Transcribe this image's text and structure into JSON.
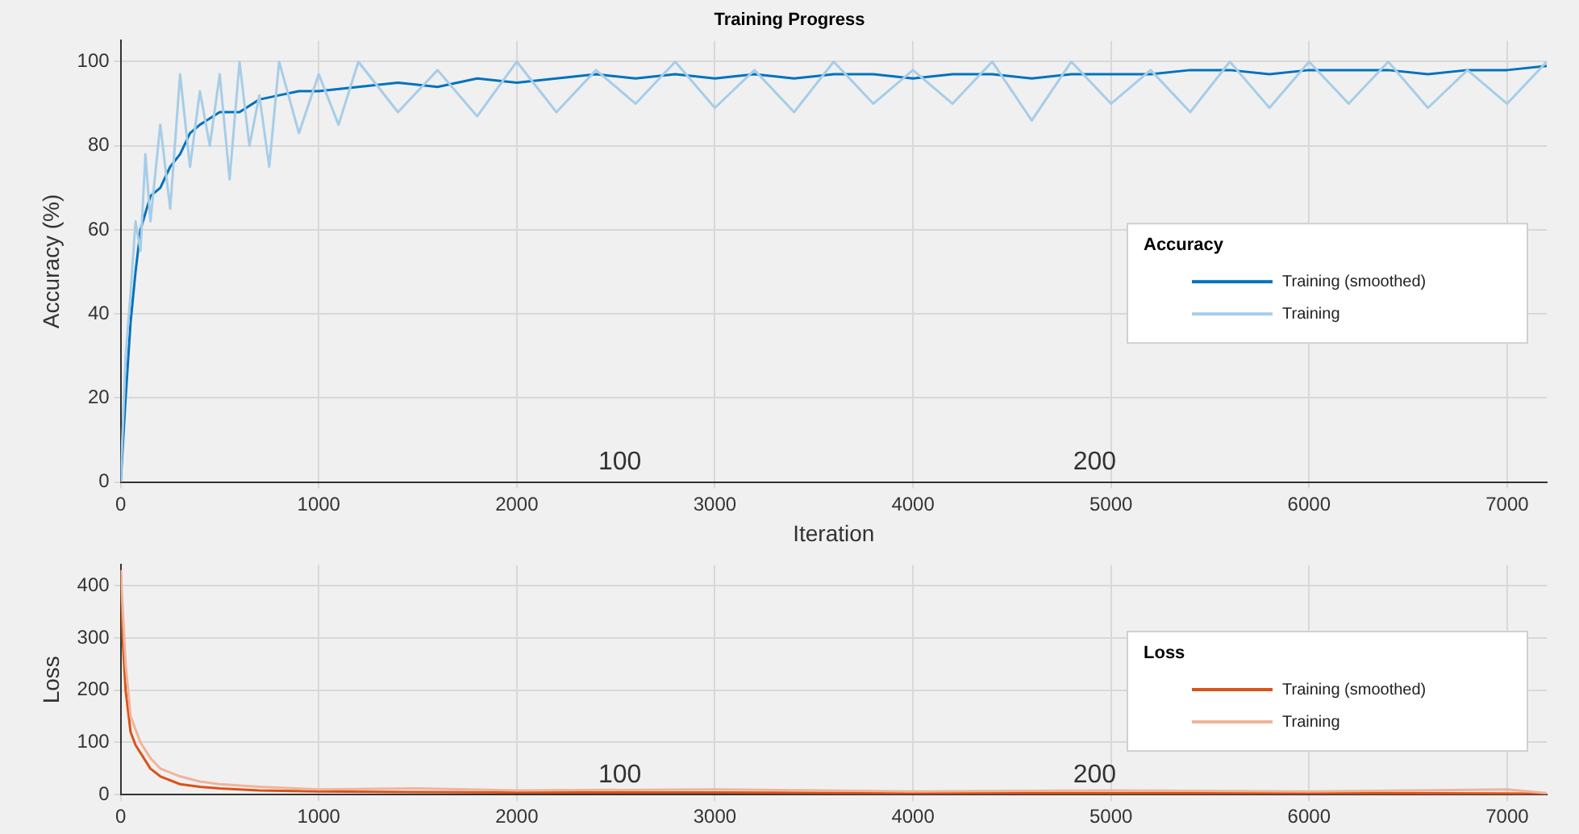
{
  "chart_data": [
    {
      "type": "line",
      "title": "Training Progress",
      "xlabel": "Iteration",
      "ylabel": "Accuracy (%)",
      "legend_title": "Accuracy",
      "legend": "right",
      "grid": true,
      "xlim": [
        0,
        7200
      ],
      "xticks": [
        0,
        1000,
        2000,
        3000,
        4000,
        5000,
        6000,
        7000
      ],
      "ylim": [
        0,
        105
      ],
      "yticks": [
        0,
        20,
        40,
        60,
        80,
        100
      ],
      "annotations": [
        "100",
        "200"
      ],
      "series": [
        {
          "name": "Training (smoothed)",
          "color": "#0072bd",
          "x": [
            0,
            25,
            50,
            75,
            100,
            150,
            200,
            250,
            300,
            350,
            400,
            500,
            600,
            700,
            800,
            900,
            1000,
            1200,
            1400,
            1600,
            1800,
            2000,
            2200,
            2400,
            2600,
            2800,
            3000,
            3200,
            3400,
            3600,
            3800,
            4000,
            4200,
            4400,
            4600,
            4800,
            5000,
            5200,
            5400,
            5600,
            5800,
            6000,
            6200,
            6400,
            6600,
            6800,
            7000,
            7200
          ],
          "values": [
            0,
            20,
            38,
            50,
            60,
            68,
            70,
            75,
            78,
            83,
            85,
            88,
            88,
            91,
            92,
            93,
            93,
            94,
            95,
            94,
            96,
            95,
            96,
            97,
            96,
            97,
            96,
            97,
            96,
            97,
            97,
            96,
            97,
            97,
            96,
            97,
            97,
            97,
            98,
            98,
            97,
            98,
            98,
            98,
            97,
            98,
            98,
            99
          ]
        },
        {
          "name": "Training",
          "color": "#a6cde8",
          "x": [
            0,
            25,
            50,
            75,
            100,
            125,
            150,
            200,
            250,
            300,
            350,
            400,
            450,
            500,
            550,
            600,
            650,
            700,
            750,
            800,
            900,
            1000,
            1100,
            1200,
            1400,
            1600,
            1800,
            2000,
            2200,
            2400,
            2600,
            2800,
            3000,
            3200,
            3400,
            3600,
            3800,
            4000,
            4200,
            4400,
            4600,
            4800,
            5000,
            5200,
            5400,
            5600,
            5800,
            6000,
            6200,
            6400,
            6600,
            6800,
            7000,
            7200
          ],
          "values": [
            0,
            30,
            45,
            62,
            55,
            78,
            62,
            85,
            65,
            97,
            75,
            93,
            80,
            97,
            72,
            100,
            80,
            92,
            75,
            100,
            83,
            97,
            85,
            100,
            88,
            98,
            87,
            100,
            88,
            98,
            90,
            100,
            89,
            98,
            88,
            100,
            90,
            98,
            90,
            100,
            86,
            100,
            90,
            98,
            88,
            100,
            89,
            100,
            90,
            100,
            89,
            98,
            90,
            100
          ]
        }
      ]
    },
    {
      "type": "line",
      "ylabel": "Loss",
      "legend_title": "Loss",
      "legend": "right",
      "grid": true,
      "xlim": [
        0,
        7200
      ],
      "xticks": [
        0,
        1000,
        2000,
        3000,
        4000,
        5000,
        6000,
        7000
      ],
      "ylim": [
        0,
        440
      ],
      "yticks": [
        0,
        100,
        200,
        300,
        400
      ],
      "annotations": [
        "100",
        "200"
      ],
      "series": [
        {
          "name": "Training (smoothed)",
          "color": "#d95319",
          "x": [
            0,
            10,
            25,
            50,
            75,
            100,
            150,
            200,
            300,
            400,
            500,
            700,
            1000,
            1500,
            2000,
            3000,
            4000,
            5000,
            6000,
            7200
          ],
          "values": [
            430,
            300,
            200,
            120,
            95,
            80,
            50,
            35,
            20,
            15,
            12,
            8,
            6,
            5,
            4,
            4,
            3,
            3,
            3,
            2
          ]
        },
        {
          "name": "Training",
          "color": "#f0b49a",
          "x": [
            0,
            25,
            50,
            100,
            150,
            200,
            300,
            400,
            500,
            700,
            1000,
            1500,
            2000,
            3000,
            4000,
            5000,
            6000,
            7000,
            7200
          ],
          "values": [
            430,
            250,
            150,
            100,
            70,
            50,
            35,
            25,
            20,
            15,
            10,
            12,
            8,
            10,
            6,
            8,
            6,
            10,
            3
          ]
        }
      ]
    }
  ]
}
